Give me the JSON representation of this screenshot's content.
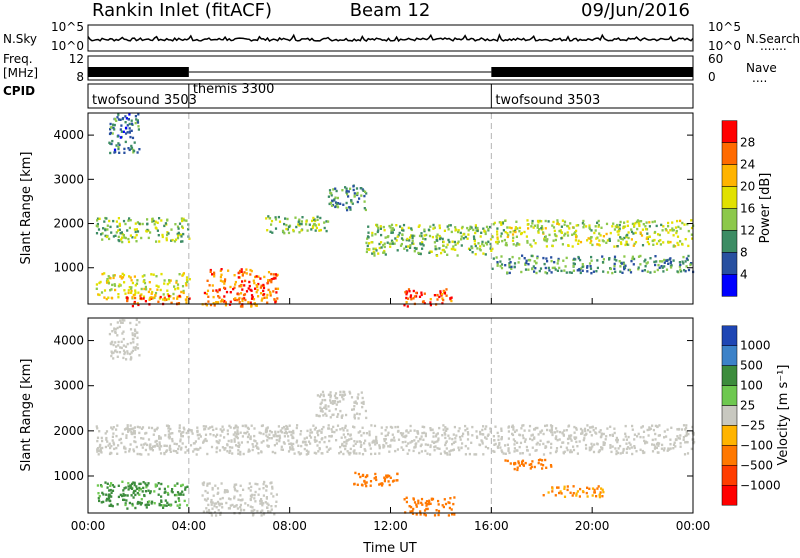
{
  "header": {
    "station": "Rankin Inlet (fitACF)",
    "beam": "Beam 12",
    "date": "09/Jun/2016"
  },
  "side_labels": {
    "nsky": "N.Sky",
    "freq_line1": "Freq.",
    "freq_line2": "[MHz]",
    "cpid": "CPID",
    "nsearch": "N.Search",
    "nave": "Nave"
  },
  "summary_axes": {
    "noise_left_ticks": [
      "10^5",
      "10^0"
    ],
    "noise_right_ticks": [
      "10^5",
      "10^0"
    ],
    "freq_ticks": [
      "12",
      "8"
    ],
    "nave_ticks": [
      "60",
      "0"
    ]
  },
  "cpid_segments": [
    {
      "label": "twofsound 3503",
      "start_hour": 0,
      "end_hour": 4
    },
    {
      "label": "themis 3300",
      "start_hour": 4,
      "end_hour": 16
    },
    {
      "label": "twofsound 3503",
      "start_hour": 16,
      "end_hour": 24
    }
  ],
  "x_axis": {
    "label": "Time UT",
    "ticks": [
      "00:00",
      "04:00",
      "08:00",
      "12:00",
      "16:00",
      "20:00",
      "00:00"
    ],
    "range_hours": [
      0,
      24
    ]
  },
  "chart_data": [
    {
      "type": "heatmap",
      "name": "power",
      "ylabel": "Slant Range [km]",
      "ylim": [
        180,
        4500
      ],
      "yticks": [
        1000,
        2000,
        3000,
        4000
      ],
      "colorbar_label": "Power [dB]",
      "colorbar_ticks": [
        "28",
        "24",
        "20",
        "16",
        "12",
        "8",
        "4"
      ],
      "colorbar_colors": [
        "#ff0000",
        "#ff6a00",
        "#ffb400",
        "#e1e100",
        "#8cc84b",
        "#3c8c64",
        "#2850a0",
        "#0000ff"
      ],
      "regions": [
        {
          "x": [
            0.3,
            4.0
          ],
          "y": [
            1600,
            2150
          ],
          "level": 12
        },
        {
          "x": [
            0.3,
            4.0
          ],
          "y": [
            300,
            900
          ],
          "level": 16
        },
        {
          "x": [
            1.5,
            4.0
          ],
          "y": [
            150,
            400
          ],
          "level": 24
        },
        {
          "x": [
            4.5,
            7.5
          ],
          "y": [
            150,
            1000
          ],
          "level": 24
        },
        {
          "x": [
            7.0,
            9.5
          ],
          "y": [
            1800,
            2200
          ],
          "level": 12
        },
        {
          "x": [
            9.5,
            11.0
          ],
          "y": [
            2300,
            2900
          ],
          "level": 8
        },
        {
          "x": [
            11.0,
            16.0
          ],
          "y": [
            1300,
            2000
          ],
          "level": 12
        },
        {
          "x": [
            12.5,
            14.5
          ],
          "y": [
            150,
            550
          ],
          "level": 26
        },
        {
          "x": [
            16.0,
            24.0
          ],
          "y": [
            1500,
            2100
          ],
          "level": 14
        },
        {
          "x": [
            16.0,
            24.0
          ],
          "y": [
            900,
            1300
          ],
          "level": 8
        },
        {
          "x": [
            0.8,
            2.0
          ],
          "y": [
            3600,
            4500
          ],
          "level": 6
        }
      ]
    },
    {
      "type": "heatmap",
      "name": "velocity",
      "ylabel": "Slant Range [km]",
      "ylim": [
        180,
        4500
      ],
      "yticks": [
        1000,
        2000,
        3000,
        4000
      ],
      "colorbar_label": "Velocity [m s⁻¹]",
      "colorbar_ticks": [
        "1000",
        "500",
        "100",
        "25",
        "−25",
        "−100",
        "−500",
        "−1000"
      ],
      "colorbar_colors": [
        "#1e46b4",
        "#3c82c8",
        "#3c8c3c",
        "#6ec850",
        "#c8c8c0",
        "#ffb400",
        "#ff7800",
        "#ff3c00",
        "#ff0000"
      ],
      "regions": [
        {
          "x": [
            0.3,
            24.0
          ],
          "y": [
            1500,
            2150
          ],
          "velocity": 0
        },
        {
          "x": [
            0.3,
            4.0
          ],
          "y": [
            300,
            900
          ],
          "velocity": 150
        },
        {
          "x": [
            4.5,
            7.5
          ],
          "y": [
            150,
            900
          ],
          "velocity": 0
        },
        {
          "x": [
            9.0,
            11.0
          ],
          "y": [
            2300,
            2900
          ],
          "velocity": 0
        },
        {
          "x": [
            12.5,
            14.5
          ],
          "y": [
            150,
            550
          ],
          "velocity": -300
        },
        {
          "x": [
            10.5,
            12.5
          ],
          "y": [
            800,
            1100
          ],
          "velocity": -200
        },
        {
          "x": [
            16.5,
            18.5
          ],
          "y": [
            1150,
            1400
          ],
          "velocity": -250
        },
        {
          "x": [
            18.0,
            20.5
          ],
          "y": [
            550,
            800
          ],
          "velocity": -120
        },
        {
          "x": [
            0.8,
            2.0
          ],
          "y": [
            3600,
            4500
          ],
          "velocity": 0
        }
      ]
    }
  ],
  "colors": {
    "noise_trace": "#000000",
    "freq_trace": "#000000",
    "divider_dash": "#b4b4b4"
  }
}
